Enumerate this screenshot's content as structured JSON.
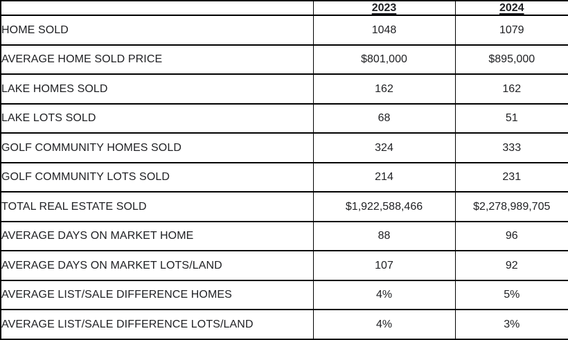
{
  "colors": {
    "border": "#000000",
    "text": "#202124",
    "background": "#ffffff"
  },
  "header": {
    "corner": "",
    "col_2023": "2023",
    "col_2024": "2024"
  },
  "rows": [
    {
      "label": "HOME SOLD",
      "v2023": "1048",
      "v2024": "1079"
    },
    {
      "label": "AVERAGE HOME SOLD PRICE",
      "v2023": "$801,000",
      "v2024": "$895,000"
    },
    {
      "label": "LAKE HOMES SOLD",
      "v2023": "162",
      "v2024": "162"
    },
    {
      "label": "LAKE LOTS SOLD",
      "v2023": "68",
      "v2024": "51"
    },
    {
      "label": "GOLF COMMUNITY HOMES SOLD",
      "v2023": "324",
      "v2024": "333"
    },
    {
      "label": "GOLF COMMUNITY LOTS SOLD",
      "v2023": "214",
      "v2024": "231"
    },
    {
      "label": "TOTAL REAL ESTATE SOLD",
      "v2023": "$1,922,588,466",
      "v2024": "$2,278,989,705"
    },
    {
      "label": "AVERAGE DAYS ON MARKET HOME",
      "v2023": "88",
      "v2024": "96"
    },
    {
      "label": "AVERAGE DAYS ON MARKET LOTS/LAND",
      "v2023": "107",
      "v2024": "92"
    },
    {
      "label": "AVERAGE LIST/SALE DIFFERENCE HOMES",
      "v2023": "4%",
      "v2024": "5%"
    },
    {
      "label": "AVERAGE LIST/SALE DIFFERENCE LOTS/LAND",
      "v2023": "4%",
      "v2024": "3%"
    }
  ],
  "chart_data": {
    "type": "table",
    "title": "",
    "categories": [
      "2023",
      "2024"
    ],
    "row_labels": [
      "HOME SOLD",
      "AVERAGE HOME SOLD PRICE",
      "LAKE HOMES SOLD",
      "LAKE LOTS SOLD",
      "GOLF COMMUNITY HOMES SOLD",
      "GOLF COMMUNITY LOTS SOLD",
      "TOTAL REAL ESTATE SOLD",
      "AVERAGE DAYS ON MARKET HOME",
      "AVERAGE DAYS ON MARKET LOTS/LAND",
      "AVERAGE LIST/SALE DIFFERENCE HOMES",
      "AVERAGE LIST/SALE DIFFERENCE LOTS/LAND"
    ],
    "series": [
      {
        "name": "2023",
        "values": [
          1048,
          801000,
          162,
          68,
          324,
          214,
          1922588466,
          88,
          107,
          0.04,
          0.04
        ]
      },
      {
        "name": "2024",
        "values": [
          1079,
          895000,
          162,
          51,
          333,
          231,
          2278989705,
          96,
          92,
          0.05,
          0.03
        ]
      }
    ]
  }
}
